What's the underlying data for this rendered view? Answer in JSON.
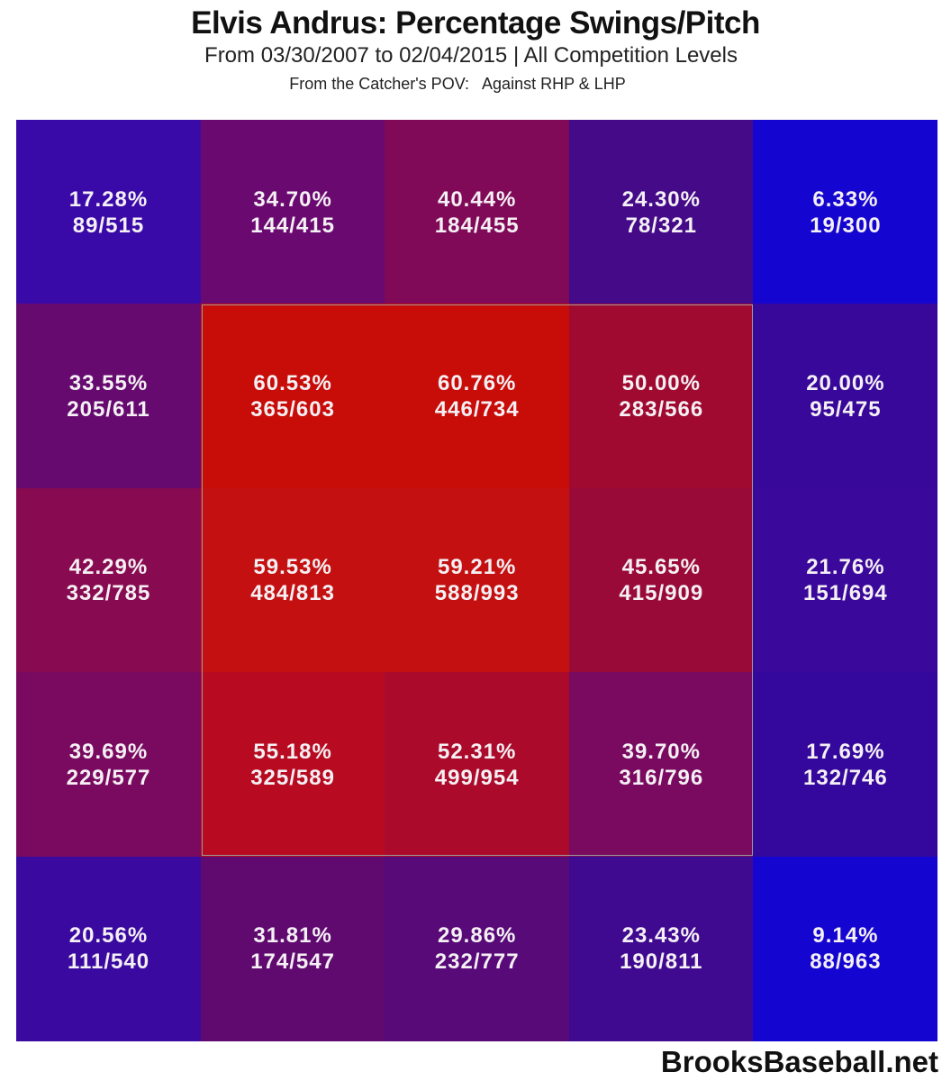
{
  "chart_data": {
    "type": "heatmap",
    "title": "Elvis Andrus: Percentage Swings/Pitch",
    "subtitle": "From 03/30/2007 to 02/04/2015 | All Competition Levels",
    "subtitle2": "From the Catcher's POV:   Against RHP & LHP",
    "rows": 5,
    "cols": 5,
    "strike_zone": "inner 3x3 cells outlined",
    "color_scale": {
      "low": "#1505d0",
      "high": "#c80c08"
    },
    "cells": [
      [
        {
          "pct": "17.28%",
          "ratio": "89/515",
          "color": "#3a0aa8"
        },
        {
          "pct": "34.70%",
          "ratio": "144/415",
          "color": "#6a0a70"
        },
        {
          "pct": "40.44%",
          "ratio": "184/455",
          "color": "#800a58"
        },
        {
          "pct": "24.30%",
          "ratio": "78/321",
          "color": "#440a88"
        },
        {
          "pct": "6.33%",
          "ratio": "19/300",
          "color": "#1505d0"
        }
      ],
      [
        {
          "pct": "33.55%",
          "ratio": "205/611",
          "color": "#660a70"
        },
        {
          "pct": "60.53%",
          "ratio": "365/603",
          "color": "#c80c08"
        },
        {
          "pct": "60.76%",
          "ratio": "446/734",
          "color": "#c80c08"
        },
        {
          "pct": "50.00%",
          "ratio": "283/566",
          "color": "#a00a30"
        },
        {
          "pct": "20.00%",
          "ratio": "95/475",
          "color": "#38089a"
        }
      ],
      [
        {
          "pct": "42.29%",
          "ratio": "332/785",
          "color": "#880a50"
        },
        {
          "pct": "59.53%",
          "ratio": "484/813",
          "color": "#c41010"
        },
        {
          "pct": "59.21%",
          "ratio": "588/993",
          "color": "#c41010"
        },
        {
          "pct": "45.65%",
          "ratio": "415/909",
          "color": "#9a0a38"
        },
        {
          "pct": "21.76%",
          "ratio": "151/694",
          "color": "#3a089a"
        }
      ],
      [
        {
          "pct": "39.69%",
          "ratio": "229/577",
          "color": "#7a0a60"
        },
        {
          "pct": "55.18%",
          "ratio": "325/589",
          "color": "#b80a20"
        },
        {
          "pct": "52.31%",
          "ratio": "499/954",
          "color": "#ac0a2a"
        },
        {
          "pct": "39.70%",
          "ratio": "316/796",
          "color": "#7a0a60"
        },
        {
          "pct": "17.69%",
          "ratio": "132/746",
          "color": "#34089c"
        }
      ],
      [
        {
          "pct": "20.56%",
          "ratio": "111/540",
          "color": "#3a0aa0"
        },
        {
          "pct": "31.81%",
          "ratio": "174/547",
          "color": "#600a70"
        },
        {
          "pct": "29.86%",
          "ratio": "232/777",
          "color": "#580a78"
        },
        {
          "pct": "23.43%",
          "ratio": "190/811",
          "color": "#400a90"
        },
        {
          "pct": "9.14%",
          "ratio": "88/963",
          "color": "#1505d0"
        }
      ]
    ]
  },
  "footer": "BrooksBaseball.net"
}
